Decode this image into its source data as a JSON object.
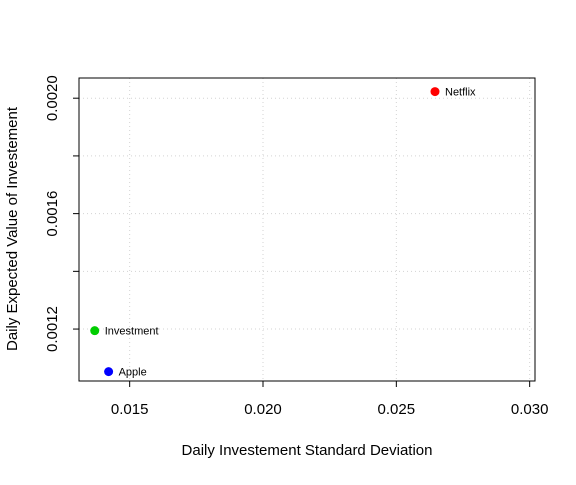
{
  "chart_data": {
    "type": "scatter",
    "title": "",
    "xlabel": "Daily Investement Standard Deviation",
    "ylabel": "Daily Expected Value of Investement",
    "xlim": [
      0.0131,
      0.0302
    ],
    "ylim": [
      0.00102,
      0.00207
    ],
    "grid": true,
    "x_ticks": [
      {
        "value": 0.015,
        "label": "0.015"
      },
      {
        "value": 0.02,
        "label": "0.020"
      },
      {
        "value": 0.025,
        "label": "0.025"
      },
      {
        "value": 0.03,
        "label": "0.030"
      }
    ],
    "y_ticks": [
      {
        "value": 0.0012,
        "label": "0.0012"
      },
      {
        "value": 0.0014,
        "label": ""
      },
      {
        "value": 0.0016,
        "label": "0.0016"
      },
      {
        "value": 0.0018,
        "label": ""
      },
      {
        "value": 0.002,
        "label": "0.0020"
      }
    ],
    "points": [
      {
        "label": "Netflix",
        "x": 0.02645,
        "y": 0.002023,
        "color": "#ff0000"
      },
      {
        "label": "Investment",
        "x": 0.01369,
        "y": 0.0011945,
        "color": "#00cd00"
      },
      {
        "label": "Apple",
        "x": 0.01421,
        "y": 0.0010525,
        "color": "#0000ff"
      }
    ]
  }
}
